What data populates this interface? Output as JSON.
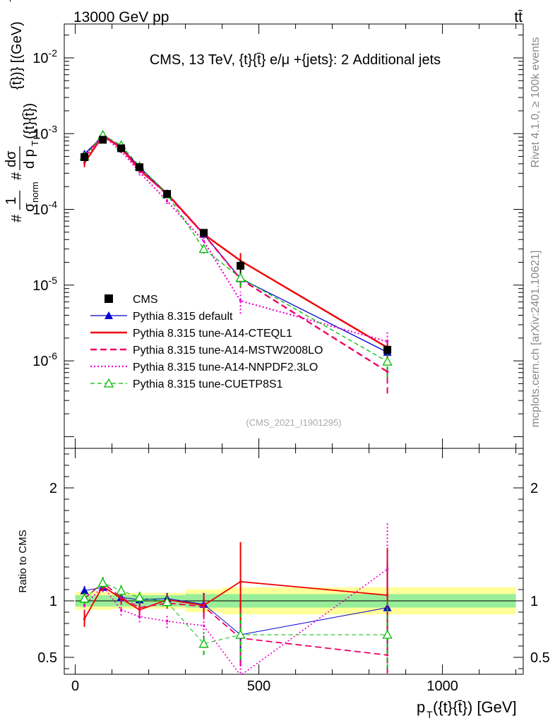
{
  "header": {
    "left": "13000 GeV pp",
    "right": "tt̄"
  },
  "side_labels": {
    "rivet": "Rivet 4.1.0, ≥ 100k events",
    "mcplots": "mcplots.cern.ch [arXiv:2401.10621]"
  },
  "chart_data": [
    {
      "type": "line",
      "scale": "log",
      "title": "CMS, 13 TeV, {t}{t̄} e/μ +{jets}: 2 Additional jets",
      "watermark": "(CMS_2021_I1901295)",
      "ylabel_parts": {
        "hash1": "#",
        "one": "1",
        "sigma": "σ",
        "norm": "norm",
        "hash2": "#",
        "dsigma": "dσ",
        "dpt": "d p",
        "pt_sub": "T",
        "ptarg": "({t}{t̄})",
        "ybrack": "{t̄})} [(GeV)",
        "ysup": "-1",
        "yend": "]"
      },
      "ylabel": "# 1/σnorm # dσ/d pT({t}{t̄})} [(GeV)-1]",
      "xlim": [
        -30,
        1220
      ],
      "ylim": [
        7e-08,
        0.028
      ],
      "yticks": [
        {
          "value": 0.01,
          "base": "10",
          "exp": "-2"
        },
        {
          "value": 0.001,
          "base": "10",
          "exp": "-3"
        },
        {
          "value": 0.0001,
          "base": "10",
          "exp": "-4"
        },
        {
          "value": 1e-05,
          "base": "10",
          "exp": "-5"
        },
        {
          "value": 1e-06,
          "base": "10",
          "exp": "-6"
        }
      ],
      "x": [
        25,
        75,
        125,
        175,
        250,
        350,
        450,
        850
      ],
      "series": [
        {
          "name": "CMS",
          "color": "#000000",
          "style": "data",
          "values": [
            0.00049,
            0.00083,
            0.00064,
            0.00036,
            0.00016,
            4.9e-05,
            1.8e-05,
            1.4e-06
          ],
          "err_lo": [
            0.00043,
            0.00076,
            0.00059,
            0.00033,
            0.000148,
            4.4e-05,
            1.45e-05,
            1.2e-06
          ],
          "err_hi": [
            0.00055,
            0.0009,
            0.00069,
            0.00039,
            0.000172,
            5.4e-05,
            2.15e-05,
            1.6e-06
          ]
        },
        {
          "name": "Pythia 8.315 default",
          "color": "#0000cc",
          "style": "solid-tri",
          "values": [
            0.00054,
            0.00093,
            0.00066,
            0.00036,
            0.000163,
            4.7e-05,
            1.22e-05,
            1.3e-06
          ],
          "err_lo": [
            0.00049,
            0.00087,
            0.00062,
            0.00034,
            0.000153,
            4.2e-05,
            9.5e-06,
            9.5e-07
          ],
          "err_hi": [
            0.00059,
            0.00099,
            0.0007,
            0.00038,
            0.000173,
            5.2e-05,
            1.52e-05,
            1.8e-06
          ]
        },
        {
          "name": "Pythia 8.315 tune-A14-CTEQL1",
          "color": "#ee0000",
          "style": "solid",
          "values": [
            0.00041,
            0.00094,
            0.00065,
            0.00033,
            0.000162,
            4.7e-05,
            2.1e-05,
            1.5e-06
          ],
          "err_lo": [
            0.00036,
            0.00088,
            0.00061,
            0.0003,
            0.00015,
            4.2e-05,
            1.55e-05,
            1.1e-06
          ],
          "err_hi": [
            0.00046,
            0.001,
            0.00069,
            0.00036,
            0.000174,
            5.2e-05,
            2.65e-05,
            1.9e-06
          ]
        },
        {
          "name": "Pythia 8.315 tune-A14-MSTW2008LO",
          "color": "#ee0066",
          "style": "dashed",
          "values": [
            0.0005,
            0.00096,
            0.00066,
            0.00034,
            0.000157,
            4.7e-05,
            1.2e-05,
            7.2e-07
          ],
          "err_lo": [
            0.00045,
            0.0009,
            0.00062,
            0.00031,
            0.000146,
            4.2e-05,
            9.2e-06,
            3.7e-07
          ],
          "err_hi": [
            0.00055,
            0.00102,
            0.0007,
            0.00037,
            0.000168,
            5.2e-05,
            1.48e-05,
            1.1e-06
          ]
        },
        {
          "name": "Pythia 8.315 tune-A14-NNPDF2.3LO",
          "color": "#ee00cc",
          "style": "dotted",
          "values": [
            0.00047,
            0.00094,
            0.00059,
            0.00031,
            0.000129,
            3.8e-05,
            6.2e-06,
            1.8e-06
          ],
          "err_lo": [
            0.00042,
            0.00088,
            0.00055,
            0.00028,
            0.000118,
            3.3e-05,
            4.2e-06,
            1.2e-06
          ],
          "err_hi": [
            0.00052,
            0.001,
            0.00063,
            0.00034,
            0.00014,
            4.3e-05,
            8.2e-06,
            2.4e-06
          ]
        },
        {
          "name": "Pythia 8.315 tune-CUETP8S1",
          "color": "#00bb00",
          "style": "dashed-opentri",
          "values": [
            0.0005,
            0.00096,
            0.0007,
            0.00037,
            0.000158,
            3e-05,
            1.25e-05,
            9.8e-07
          ],
          "err_lo": [
            0.00045,
            0.0009,
            0.00066,
            0.00034,
            0.000147,
            2.6e-05,
            9.5e-06,
            6e-07
          ],
          "err_hi": [
            0.00055,
            0.00102,
            0.00074,
            0.0004,
            0.000169,
            3.4e-05,
            1.55e-05,
            1.4e-06
          ]
        }
      ]
    },
    {
      "type": "line",
      "ylabel": "Ratio to CMS",
      "xlabel": "p_T({t}{t̄}) [GeV]",
      "xlabel_parts": {
        "p": "p",
        "sub": "T",
        "rest": "({t}{t̄}) [GeV]"
      },
      "xlim": [
        -30,
        1220
      ],
      "ylim": [
        0.35,
        2.35
      ],
      "yticks": [
        0.5,
        1,
        2
      ],
      "ytick_labels": [
        "0.5",
        "1",
        "2"
      ],
      "xticks": [
        0,
        500,
        1000
      ],
      "xtick_labels": [
        "0",
        "500",
        "1000"
      ],
      "band_bins": [
        0,
        50,
        100,
        150,
        200,
        300,
        400,
        1200
      ],
      "band_inner": [
        0.05,
        0.05,
        0.05,
        0.05,
        0.05,
        0.06,
        0.06
      ],
      "band_outer": [
        0.08,
        0.08,
        0.07,
        0.07,
        0.07,
        0.1,
        0.12
      ],
      "x": [
        25,
        75,
        125,
        175,
        250,
        350,
        450,
        850
      ],
      "series": [
        {
          "name": "Pythia 8.315 default",
          "values": [
            1.09,
            1.12,
            1.03,
            1.01,
            1.02,
            0.97,
            0.7,
            0.94
          ],
          "err": [
            0.04,
            0.04,
            0.04,
            0.04,
            0.05,
            0.1,
            0.28,
            0.4
          ]
        },
        {
          "name": "Pythia 8.315 tune-A14-CTEQL1",
          "values": [
            0.84,
            1.13,
            1.02,
            0.92,
            1.01,
            0.96,
            1.17,
            1.05
          ],
          "err": [
            0.07,
            0.05,
            0.05,
            0.05,
            0.05,
            0.1,
            0.35,
            0.42
          ]
        },
        {
          "name": "Pythia 8.315 tune-A14-MSTW2008LO",
          "values": [
            1.02,
            1.16,
            1.03,
            0.94,
            0.98,
            0.95,
            0.67,
            0.52
          ],
          "err": [
            0.05,
            0.05,
            0.05,
            0.05,
            0.05,
            0.1,
            0.25,
            0.25
          ]
        },
        {
          "name": "Pythia 8.315 tune-A14-NNPDF2.3LO",
          "values": [
            0.96,
            1.13,
            0.92,
            0.86,
            0.82,
            0.78,
            0.34,
            1.28
          ],
          "err": [
            0.05,
            0.05,
            0.05,
            0.05,
            0.06,
            0.1,
            0.2,
            0.42
          ]
        },
        {
          "name": "Pythia 8.315 tune-CUETP8S1",
          "values": [
            1.02,
            1.16,
            1.09,
            1.03,
            0.99,
            0.62,
            0.7,
            0.7
          ],
          "err": [
            0.05,
            0.05,
            0.05,
            0.05,
            0.05,
            0.1,
            0.22,
            0.3
          ]
        }
      ]
    }
  ]
}
